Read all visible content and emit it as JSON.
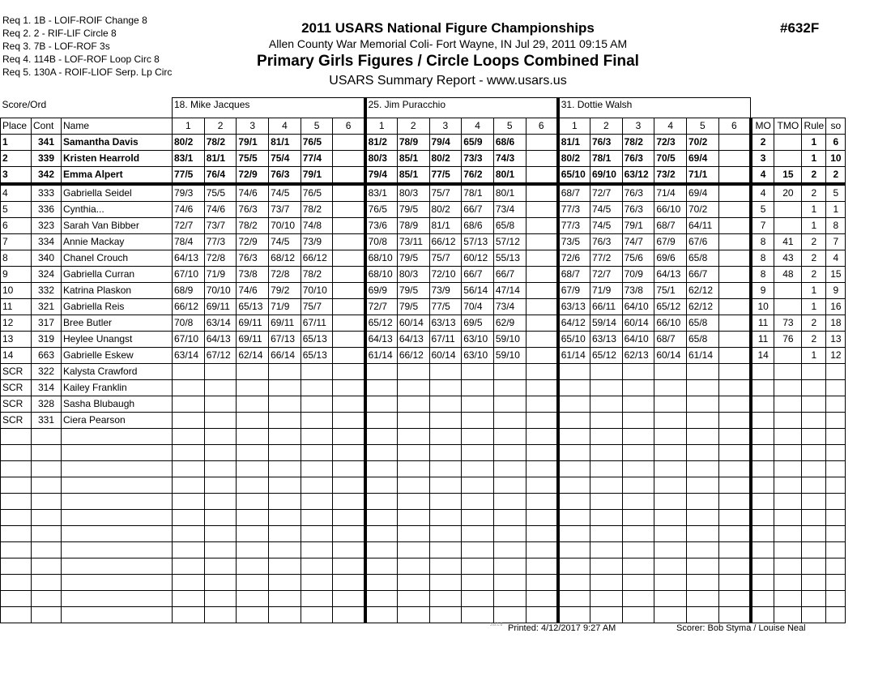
{
  "requirements": [
    "Req  1.  1B - LOIF-ROIF Change 8",
    "Req  2.  2 - RIF-LIF Circle 8",
    "Req  3.  7B - LOF-ROF 3s",
    "Req  4.  114B - LOF-ROF Loop Circ 8",
    "Req  5.  130A - ROIF-LIOF Serp. Lp Circ"
  ],
  "header": {
    "title": "2011 USARS National Figure Championships",
    "venue": "Allen County War Memorial Coli- Fort Wayne, IN  Jul 29, 2011  09:15 AM",
    "event": "Primary Girls Figures / Circle Loops Combined Final",
    "report": "USARS Summary Report - www.usars.us",
    "event_number": "#632F"
  },
  "table": {
    "score_ord_label": "Score/Ord",
    "judges": [
      "18.  Mike Jacques",
      "25.  Jim Puracchio",
      "31.  Dottie Walsh"
    ],
    "columns": {
      "place": "Place",
      "cont": "Cont",
      "name": "Name",
      "figures": [
        "1",
        "2",
        "3",
        "4",
        "5",
        "6"
      ],
      "mo": "MO",
      "tmo": "TMO",
      "rule": "Rule",
      "so": "so"
    },
    "rows": [
      {
        "place": "1",
        "cont": "341",
        "name": "Samantha Davis",
        "scores": [
          [
            "80/2",
            "78/2",
            "79/1",
            "81/1",
            "76/5",
            ""
          ],
          [
            "81/2",
            "78/9",
            "79/4",
            "65/9",
            "68/6",
            ""
          ],
          [
            "81/1",
            "76/3",
            "78/2",
            "72/3",
            "70/2",
            ""
          ]
        ],
        "mo": "2",
        "tmo": "",
        "rule": "1",
        "so": "6"
      },
      {
        "place": "2",
        "cont": "339",
        "name": "Kristen Hearrold",
        "scores": [
          [
            "83/1",
            "81/1",
            "75/5",
            "75/4",
            "77/4",
            ""
          ],
          [
            "80/3",
            "85/1",
            "80/2",
            "73/3",
            "74/3",
            ""
          ],
          [
            "80/2",
            "78/1",
            "76/3",
            "70/5",
            "69/4",
            ""
          ]
        ],
        "mo": "3",
        "tmo": "",
        "rule": "1",
        "so": "10"
      },
      {
        "place": "3",
        "cont": "342",
        "name": "Emma Alpert",
        "scores": [
          [
            "77/5",
            "76/4",
            "72/9",
            "76/3",
            "79/1",
            ""
          ],
          [
            "79/4",
            "85/1",
            "77/5",
            "76/2",
            "80/1",
            ""
          ],
          [
            "65/10",
            "69/10",
            "63/12",
            "73/2",
            "71/1",
            ""
          ]
        ],
        "mo": "4",
        "tmo": "15",
        "rule": "2",
        "so": "2"
      },
      {
        "place": "4",
        "cont": "333",
        "name": "Gabriella Seidel",
        "scores": [
          [
            "79/3",
            "75/5",
            "74/6",
            "74/5",
            "76/5",
            ""
          ],
          [
            "83/1",
            "80/3",
            "75/7",
            "78/1",
            "80/1",
            ""
          ],
          [
            "68/7",
            "72/7",
            "76/3",
            "71/4",
            "69/4",
            ""
          ]
        ],
        "mo": "4",
        "tmo": "20",
        "rule": "2",
        "so": "5"
      },
      {
        "place": "5",
        "cont": "336",
        "name": "Cynthia...",
        "scores": [
          [
            "74/6",
            "74/6",
            "76/3",
            "73/7",
            "78/2",
            ""
          ],
          [
            "76/5",
            "79/5",
            "80/2",
            "66/7",
            "73/4",
            ""
          ],
          [
            "77/3",
            "74/5",
            "76/3",
            "66/10",
            "70/2",
            ""
          ]
        ],
        "mo": "5",
        "tmo": "",
        "rule": "1",
        "so": "1"
      },
      {
        "place": "6",
        "cont": "323",
        "name": "Sarah Van Bibber",
        "scores": [
          [
            "72/7",
            "73/7",
            "78/2",
            "70/10",
            "74/8",
            ""
          ],
          [
            "73/6",
            "78/9",
            "81/1",
            "68/6",
            "65/8",
            ""
          ],
          [
            "77/3",
            "74/5",
            "79/1",
            "68/7",
            "64/11",
            ""
          ]
        ],
        "mo": "7",
        "tmo": "",
        "rule": "1",
        "so": "8"
      },
      {
        "place": "7",
        "cont": "334",
        "name": "Annie Mackay",
        "scores": [
          [
            "78/4",
            "77/3",
            "72/9",
            "74/5",
            "73/9",
            ""
          ],
          [
            "70/8",
            "73/11",
            "66/12",
            "57/13",
            "57/12",
            ""
          ],
          [
            "73/5",
            "76/3",
            "74/7",
            "67/9",
            "67/6",
            ""
          ]
        ],
        "mo": "8",
        "tmo": "41",
        "rule": "2",
        "so": "7"
      },
      {
        "place": "8",
        "cont": "340",
        "name": "Chanel Crouch",
        "scores": [
          [
            "64/13",
            "72/8",
            "76/3",
            "68/12",
            "66/12",
            ""
          ],
          [
            "68/10",
            "79/5",
            "75/7",
            "60/12",
            "55/13",
            ""
          ],
          [
            "72/6",
            "77/2",
            "75/6",
            "69/6",
            "65/8",
            ""
          ]
        ],
        "mo": "8",
        "tmo": "43",
        "rule": "2",
        "so": "4"
      },
      {
        "place": "9",
        "cont": "324",
        "name": "Gabriella Curran",
        "scores": [
          [
            "67/10",
            "71/9",
            "73/8",
            "72/8",
            "78/2",
            ""
          ],
          [
            "68/10",
            "80/3",
            "72/10",
            "66/7",
            "66/7",
            ""
          ],
          [
            "68/7",
            "72/7",
            "70/9",
            "64/13",
            "66/7",
            ""
          ]
        ],
        "mo": "8",
        "tmo": "48",
        "rule": "2",
        "so": "15"
      },
      {
        "place": "10",
        "cont": "332",
        "name": "Katrina Plaskon",
        "scores": [
          [
            "68/9",
            "70/10",
            "74/6",
            "79/2",
            "70/10",
            ""
          ],
          [
            "69/9",
            "79/5",
            "73/9",
            "56/14",
            "47/14",
            ""
          ],
          [
            "67/9",
            "71/9",
            "73/8",
            "75/1",
            "62/12",
            ""
          ]
        ],
        "mo": "9",
        "tmo": "",
        "rule": "1",
        "so": "9"
      },
      {
        "place": "11",
        "cont": "321",
        "name": "Gabriella Reis",
        "scores": [
          [
            "66/12",
            "69/11",
            "65/13",
            "71/9",
            "75/7",
            ""
          ],
          [
            "72/7",
            "79/5",
            "77/5",
            "70/4",
            "73/4",
            ""
          ],
          [
            "63/13",
            "66/11",
            "64/10",
            "65/12",
            "62/12",
            ""
          ]
        ],
        "mo": "10",
        "tmo": "",
        "rule": "1",
        "so": "16"
      },
      {
        "place": "12",
        "cont": "317",
        "name": "Bree Butler",
        "scores": [
          [
            "70/8",
            "63/14",
            "69/11",
            "69/11",
            "67/11",
            ""
          ],
          [
            "65/12",
            "60/14",
            "63/13",
            "69/5",
            "62/9",
            ""
          ],
          [
            "64/12",
            "59/14",
            "60/14",
            "66/10",
            "65/8",
            ""
          ]
        ],
        "mo": "11",
        "tmo": "73",
        "rule": "2",
        "so": "18"
      },
      {
        "place": "13",
        "cont": "319",
        "name": "Heylee Unangst",
        "scores": [
          [
            "67/10",
            "64/13",
            "69/11",
            "67/13",
            "65/13",
            ""
          ],
          [
            "64/13",
            "64/13",
            "67/11",
            "63/10",
            "59/10",
            ""
          ],
          [
            "65/10",
            "63/13",
            "64/10",
            "68/7",
            "65/8",
            ""
          ]
        ],
        "mo": "11",
        "tmo": "76",
        "rule": "2",
        "so": "13"
      },
      {
        "place": "14",
        "cont": "663",
        "name": "Gabrielle Eskew",
        "scores": [
          [
            "63/14",
            "67/12",
            "62/14",
            "66/14",
            "65/13",
            ""
          ],
          [
            "61/14",
            "66/12",
            "60/14",
            "63/10",
            "59/10",
            ""
          ],
          [
            "61/14",
            "65/12",
            "62/13",
            "60/14",
            "61/14",
            ""
          ]
        ],
        "mo": "14",
        "tmo": "",
        "rule": "1",
        "so": "12"
      },
      {
        "place": "SCR",
        "cont": "322",
        "name": "Kalysta Crawford",
        "scores": [
          [
            "",
            "",
            "",
            "",
            "",
            ""
          ],
          [
            "",
            "",
            "",
            "",
            "",
            ""
          ],
          [
            "",
            "",
            "",
            "",
            "",
            ""
          ]
        ],
        "mo": "",
        "tmo": "",
        "rule": "",
        "so": ""
      },
      {
        "place": "SCR",
        "cont": "314",
        "name": "Kailey Franklin",
        "scores": [
          [
            "",
            "",
            "",
            "",
            "",
            ""
          ],
          [
            "",
            "",
            "",
            "",
            "",
            ""
          ],
          [
            "",
            "",
            "",
            "",
            "",
            ""
          ]
        ],
        "mo": "",
        "tmo": "",
        "rule": "",
        "so": ""
      },
      {
        "place": "SCR",
        "cont": "328",
        "name": "Sasha Blubaugh",
        "scores": [
          [
            "",
            "",
            "",
            "",
            "",
            ""
          ],
          [
            "",
            "",
            "",
            "",
            "",
            ""
          ],
          [
            "",
            "",
            "",
            "",
            "",
            ""
          ]
        ],
        "mo": "",
        "tmo": "",
        "rule": "",
        "so": ""
      },
      {
        "place": "SCR",
        "cont": "331",
        "name": "Ciera Pearson",
        "scores": [
          [
            "",
            "",
            "",
            "",
            "",
            ""
          ],
          [
            "",
            "",
            "",
            "",
            "",
            ""
          ],
          [
            "",
            "",
            "",
            "",
            "",
            ""
          ]
        ],
        "mo": "",
        "tmo": "",
        "rule": "",
        "so": ""
      }
    ]
  },
  "footer": {
    "version": "3.8.1.8",
    "printed": "Printed:  4/12/2017  9:27 AM",
    "scorer": "Scorer:   Bob Styma / Louise Neal"
  }
}
